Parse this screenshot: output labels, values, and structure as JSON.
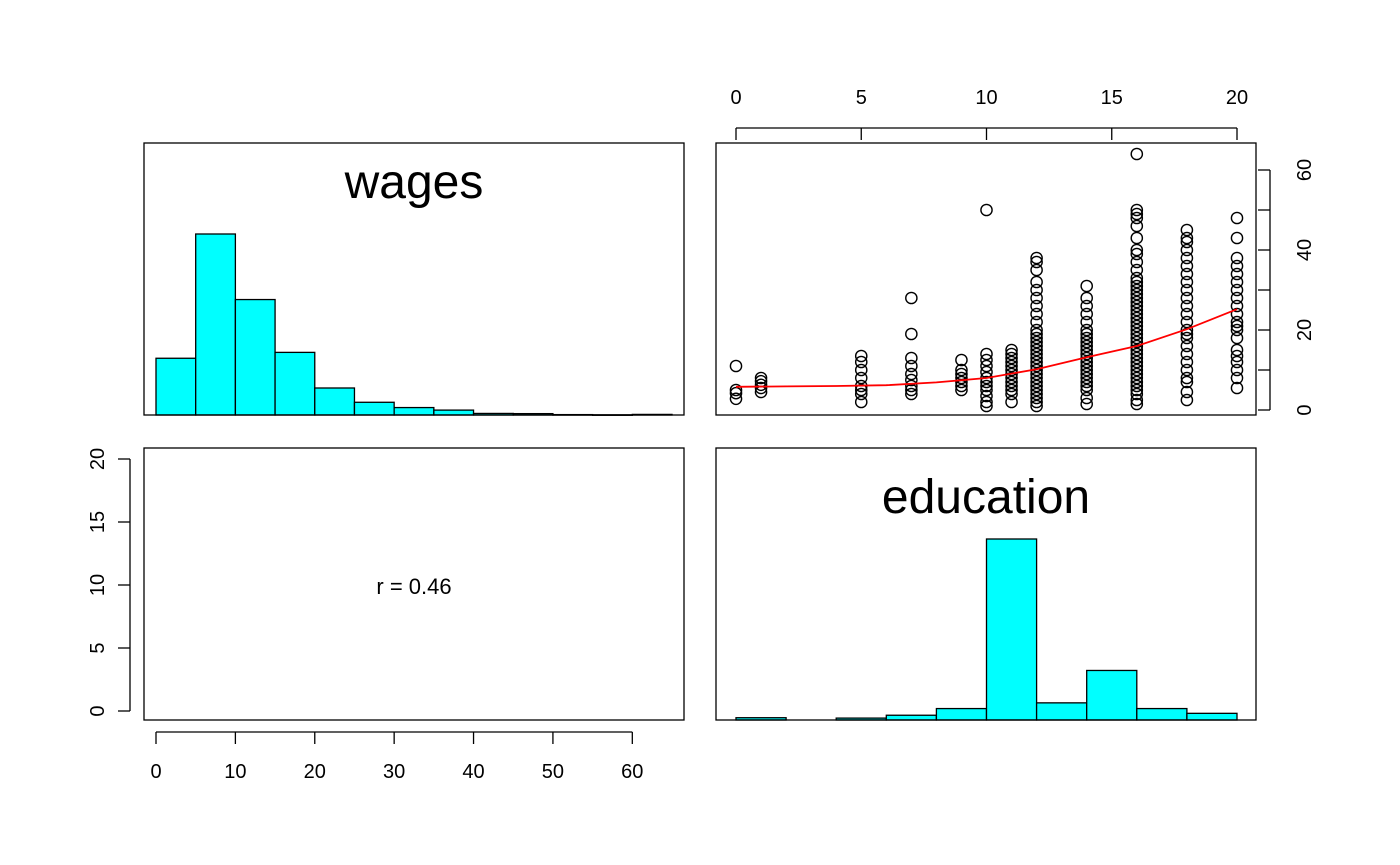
{
  "chart_data": [
    {
      "type": "bar",
      "panel": "top-left",
      "variable": "wages",
      "label": "wages",
      "bins": [
        [
          0,
          5
        ],
        [
          5,
          10
        ],
        [
          10,
          15
        ],
        [
          15,
          20
        ],
        [
          20,
          25
        ],
        [
          25,
          30
        ],
        [
          30,
          35
        ],
        [
          35,
          40
        ],
        [
          40,
          45
        ],
        [
          45,
          50
        ],
        [
          50,
          55
        ],
        [
          55,
          60
        ],
        [
          60,
          65
        ]
      ],
      "values": [
        290,
        925,
        590,
        320,
        138,
        65,
        38,
        25,
        8,
        7,
        2,
        1,
        3
      ],
      "xlim": [
        0,
        65
      ]
    },
    {
      "type": "scatter",
      "panel": "top-right",
      "x_variable": "education",
      "y_variable": "wages",
      "xlim": [
        0,
        20
      ],
      "ylim": [
        0,
        65
      ],
      "xticks": [
        0,
        5,
        10,
        15,
        20
      ],
      "yticks": [
        0,
        10,
        20,
        30,
        40,
        50,
        60
      ],
      "x_tick_labels": [
        "0",
        "5",
        "10",
        "15",
        "20"
      ],
      "y_tick_labels": [
        "0",
        "20",
        "40",
        "60"
      ],
      "points": [
        [
          0,
          2.8
        ],
        [
          0,
          4.2
        ],
        [
          0,
          5
        ],
        [
          0,
          11
        ],
        [
          1,
          4.5
        ],
        [
          1,
          5.5
        ],
        [
          1,
          6.3
        ],
        [
          1,
          7.2
        ],
        [
          1,
          8
        ],
        [
          5,
          2
        ],
        [
          5,
          4
        ],
        [
          5,
          5
        ],
        [
          5,
          6
        ],
        [
          5,
          8
        ],
        [
          5,
          10
        ],
        [
          5,
          12
        ],
        [
          5,
          13.5
        ],
        [
          7,
          4
        ],
        [
          7,
          5
        ],
        [
          7,
          6
        ],
        [
          7,
          7.5
        ],
        [
          7,
          9
        ],
        [
          7,
          11
        ],
        [
          7,
          13
        ],
        [
          7,
          19
        ],
        [
          7,
          28
        ],
        [
          9,
          5
        ],
        [
          9,
          6
        ],
        [
          9,
          7
        ],
        [
          9,
          8
        ],
        [
          9,
          9
        ],
        [
          9,
          10
        ],
        [
          9,
          12.5
        ],
        [
          10,
          1
        ],
        [
          10,
          2
        ],
        [
          10,
          3.5
        ],
        [
          10,
          5
        ],
        [
          10,
          6
        ],
        [
          10,
          7
        ],
        [
          10,
          8
        ],
        [
          10,
          9.5
        ],
        [
          10,
          11
        ],
        [
          10,
          12.5
        ],
        [
          10,
          14
        ],
        [
          10,
          50
        ],
        [
          11,
          2
        ],
        [
          11,
          4
        ],
        [
          11,
          5
        ],
        [
          11,
          6
        ],
        [
          11,
          7
        ],
        [
          11,
          8
        ],
        [
          11,
          9
        ],
        [
          11,
          10
        ],
        [
          11,
          11
        ],
        [
          11,
          12
        ],
        [
          11,
          13
        ],
        [
          11,
          14
        ],
        [
          11,
          15
        ],
        [
          12,
          1
        ],
        [
          12,
          2
        ],
        [
          12,
          3
        ],
        [
          12,
          4
        ],
        [
          12,
          5
        ],
        [
          12,
          6
        ],
        [
          12,
          7
        ],
        [
          12,
          8
        ],
        [
          12,
          9
        ],
        [
          12,
          10
        ],
        [
          12,
          11
        ],
        [
          12,
          12
        ],
        [
          12,
          13
        ],
        [
          12,
          14
        ],
        [
          12,
          15
        ],
        [
          12,
          16
        ],
        [
          12,
          17
        ],
        [
          12,
          18
        ],
        [
          12,
          19
        ],
        [
          12,
          20
        ],
        [
          12,
          22
        ],
        [
          12,
          24
        ],
        [
          12,
          26
        ],
        [
          12,
          28
        ],
        [
          12,
          30
        ],
        [
          12,
          32
        ],
        [
          12,
          35
        ],
        [
          12,
          37
        ],
        [
          12,
          38
        ],
        [
          14,
          1.5
        ],
        [
          14,
          3
        ],
        [
          14,
          5
        ],
        [
          14,
          6
        ],
        [
          14,
          7
        ],
        [
          14,
          8
        ],
        [
          14,
          9
        ],
        [
          14,
          10
        ],
        [
          14,
          11
        ],
        [
          14,
          12
        ],
        [
          14,
          13
        ],
        [
          14,
          14
        ],
        [
          14,
          15
        ],
        [
          14,
          16
        ],
        [
          14,
          17
        ],
        [
          14,
          18
        ],
        [
          14,
          19
        ],
        [
          14,
          20
        ],
        [
          14,
          22
        ],
        [
          14,
          24
        ],
        [
          14,
          26
        ],
        [
          14,
          28
        ],
        [
          14,
          31
        ],
        [
          16,
          1.5
        ],
        [
          16,
          2.5
        ],
        [
          16,
          4
        ],
        [
          16,
          5
        ],
        [
          16,
          6
        ],
        [
          16,
          7
        ],
        [
          16,
          8
        ],
        [
          16,
          9
        ],
        [
          16,
          10
        ],
        [
          16,
          11
        ],
        [
          16,
          12
        ],
        [
          16,
          13
        ],
        [
          16,
          14
        ],
        [
          16,
          15
        ],
        [
          16,
          16
        ],
        [
          16,
          17
        ],
        [
          16,
          18
        ],
        [
          16,
          19
        ],
        [
          16,
          20
        ],
        [
          16,
          21
        ],
        [
          16,
          22
        ],
        [
          16,
          23
        ],
        [
          16,
          24
        ],
        [
          16,
          25
        ],
        [
          16,
          26
        ],
        [
          16,
          27
        ],
        [
          16,
          28
        ],
        [
          16,
          29
        ],
        [
          16,
          30
        ],
        [
          16,
          31
        ],
        [
          16,
          32
        ],
        [
          16,
          33
        ],
        [
          16,
          35
        ],
        [
          16,
          37
        ],
        [
          16,
          39
        ],
        [
          16,
          40
        ],
        [
          16,
          43
        ],
        [
          16,
          46
        ],
        [
          16,
          48
        ],
        [
          16,
          49
        ],
        [
          16,
          50
        ],
        [
          16,
          64
        ],
        [
          18,
          2.5
        ],
        [
          18,
          4.5
        ],
        [
          18,
          7
        ],
        [
          18,
          8
        ],
        [
          18,
          10
        ],
        [
          18,
          12
        ],
        [
          18,
          14
        ],
        [
          18,
          16
        ],
        [
          18,
          18
        ],
        [
          18,
          19
        ],
        [
          18,
          20
        ],
        [
          18,
          22
        ],
        [
          18,
          24
        ],
        [
          18,
          26
        ],
        [
          18,
          28
        ],
        [
          18,
          30
        ],
        [
          18,
          32
        ],
        [
          18,
          34
        ],
        [
          18,
          36
        ],
        [
          18,
          38
        ],
        [
          18,
          40
        ],
        [
          18,
          42
        ],
        [
          18,
          43
        ],
        [
          18,
          45
        ],
        [
          20,
          5.5
        ],
        [
          20,
          8
        ],
        [
          20,
          10
        ],
        [
          20,
          12
        ],
        [
          20,
          13.5
        ],
        [
          20,
          15
        ],
        [
          20,
          18
        ],
        [
          20,
          20
        ],
        [
          20,
          21
        ],
        [
          20,
          22
        ],
        [
          20,
          24
        ],
        [
          20,
          26
        ],
        [
          20,
          28
        ],
        [
          20,
          30
        ],
        [
          20,
          32
        ],
        [
          20,
          34
        ],
        [
          20,
          36
        ],
        [
          20,
          38
        ],
        [
          20,
          43
        ],
        [
          20,
          48
        ]
      ],
      "fit_line": [
        [
          0,
          5.8
        ],
        [
          2,
          5.9
        ],
        [
          4,
          6.0
        ],
        [
          6,
          6.2
        ],
        [
          8,
          6.9
        ],
        [
          10,
          8.0
        ],
        [
          12,
          10.2
        ],
        [
          14,
          13.2
        ],
        [
          16,
          16.0
        ],
        [
          18,
          20.2
        ],
        [
          20,
          25.2
        ]
      ]
    },
    {
      "type": "table",
      "panel": "bottom-left",
      "text": "r = 0.46",
      "xlim": [
        0,
        65
      ],
      "ylim": [
        0,
        20
      ],
      "xticks": [
        0,
        10,
        20,
        30,
        40,
        50,
        60
      ],
      "yticks": [
        0,
        5,
        10,
        15,
        20
      ],
      "x_tick_labels": [
        "0",
        "10",
        "20",
        "30",
        "40",
        "50",
        "60"
      ],
      "y_tick_labels": [
        "0",
        "5",
        "10",
        "15",
        "20"
      ]
    },
    {
      "type": "bar",
      "panel": "bottom-right",
      "variable": "education",
      "label": "education",
      "bins": [
        [
          0,
          2
        ],
        [
          2,
          4
        ],
        [
          4,
          6
        ],
        [
          6,
          8
        ],
        [
          8,
          10
        ],
        [
          10,
          12
        ],
        [
          12,
          14
        ],
        [
          14,
          16
        ],
        [
          16,
          18
        ],
        [
          18,
          20
        ]
      ],
      "values": [
        12,
        0,
        10,
        25,
        60,
        950,
        90,
        260,
        60,
        35
      ],
      "xlim": [
        0,
        20
      ]
    }
  ],
  "colors": {
    "bar_fill": "#00ffff",
    "fit_line": "#ff0000",
    "axis": "#000000"
  }
}
